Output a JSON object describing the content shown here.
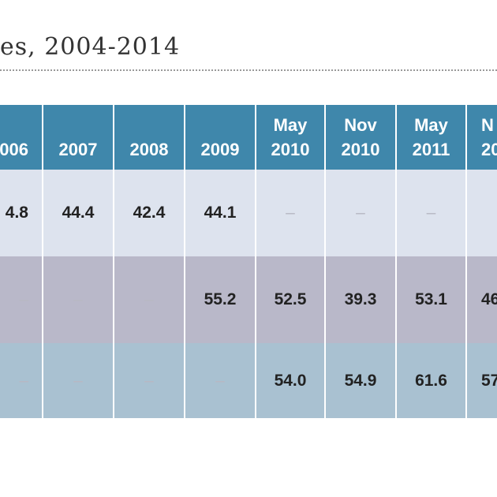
{
  "header": {
    "title": "es, 2004-2014"
  },
  "table": {
    "header": [
      [
        "006"
      ],
      [
        "2007"
      ],
      [
        "2008"
      ],
      [
        "2009"
      ],
      [
        "May",
        "2010"
      ],
      [
        "Nov",
        "2010"
      ],
      [
        "May",
        "2011"
      ],
      [
        "N",
        "20"
      ]
    ],
    "rows": [
      [
        "4.8",
        "44.4",
        "42.4",
        "44.1",
        "–",
        "–",
        "–",
        ""
      ],
      [
        "–",
        "–",
        "–",
        "55.2",
        "52.5",
        "39.3",
        "53.1",
        "46"
      ],
      [
        "–",
        "–",
        "–",
        "–",
        "54.0",
        "54.9",
        "61.6",
        "57"
      ]
    ]
  }
}
